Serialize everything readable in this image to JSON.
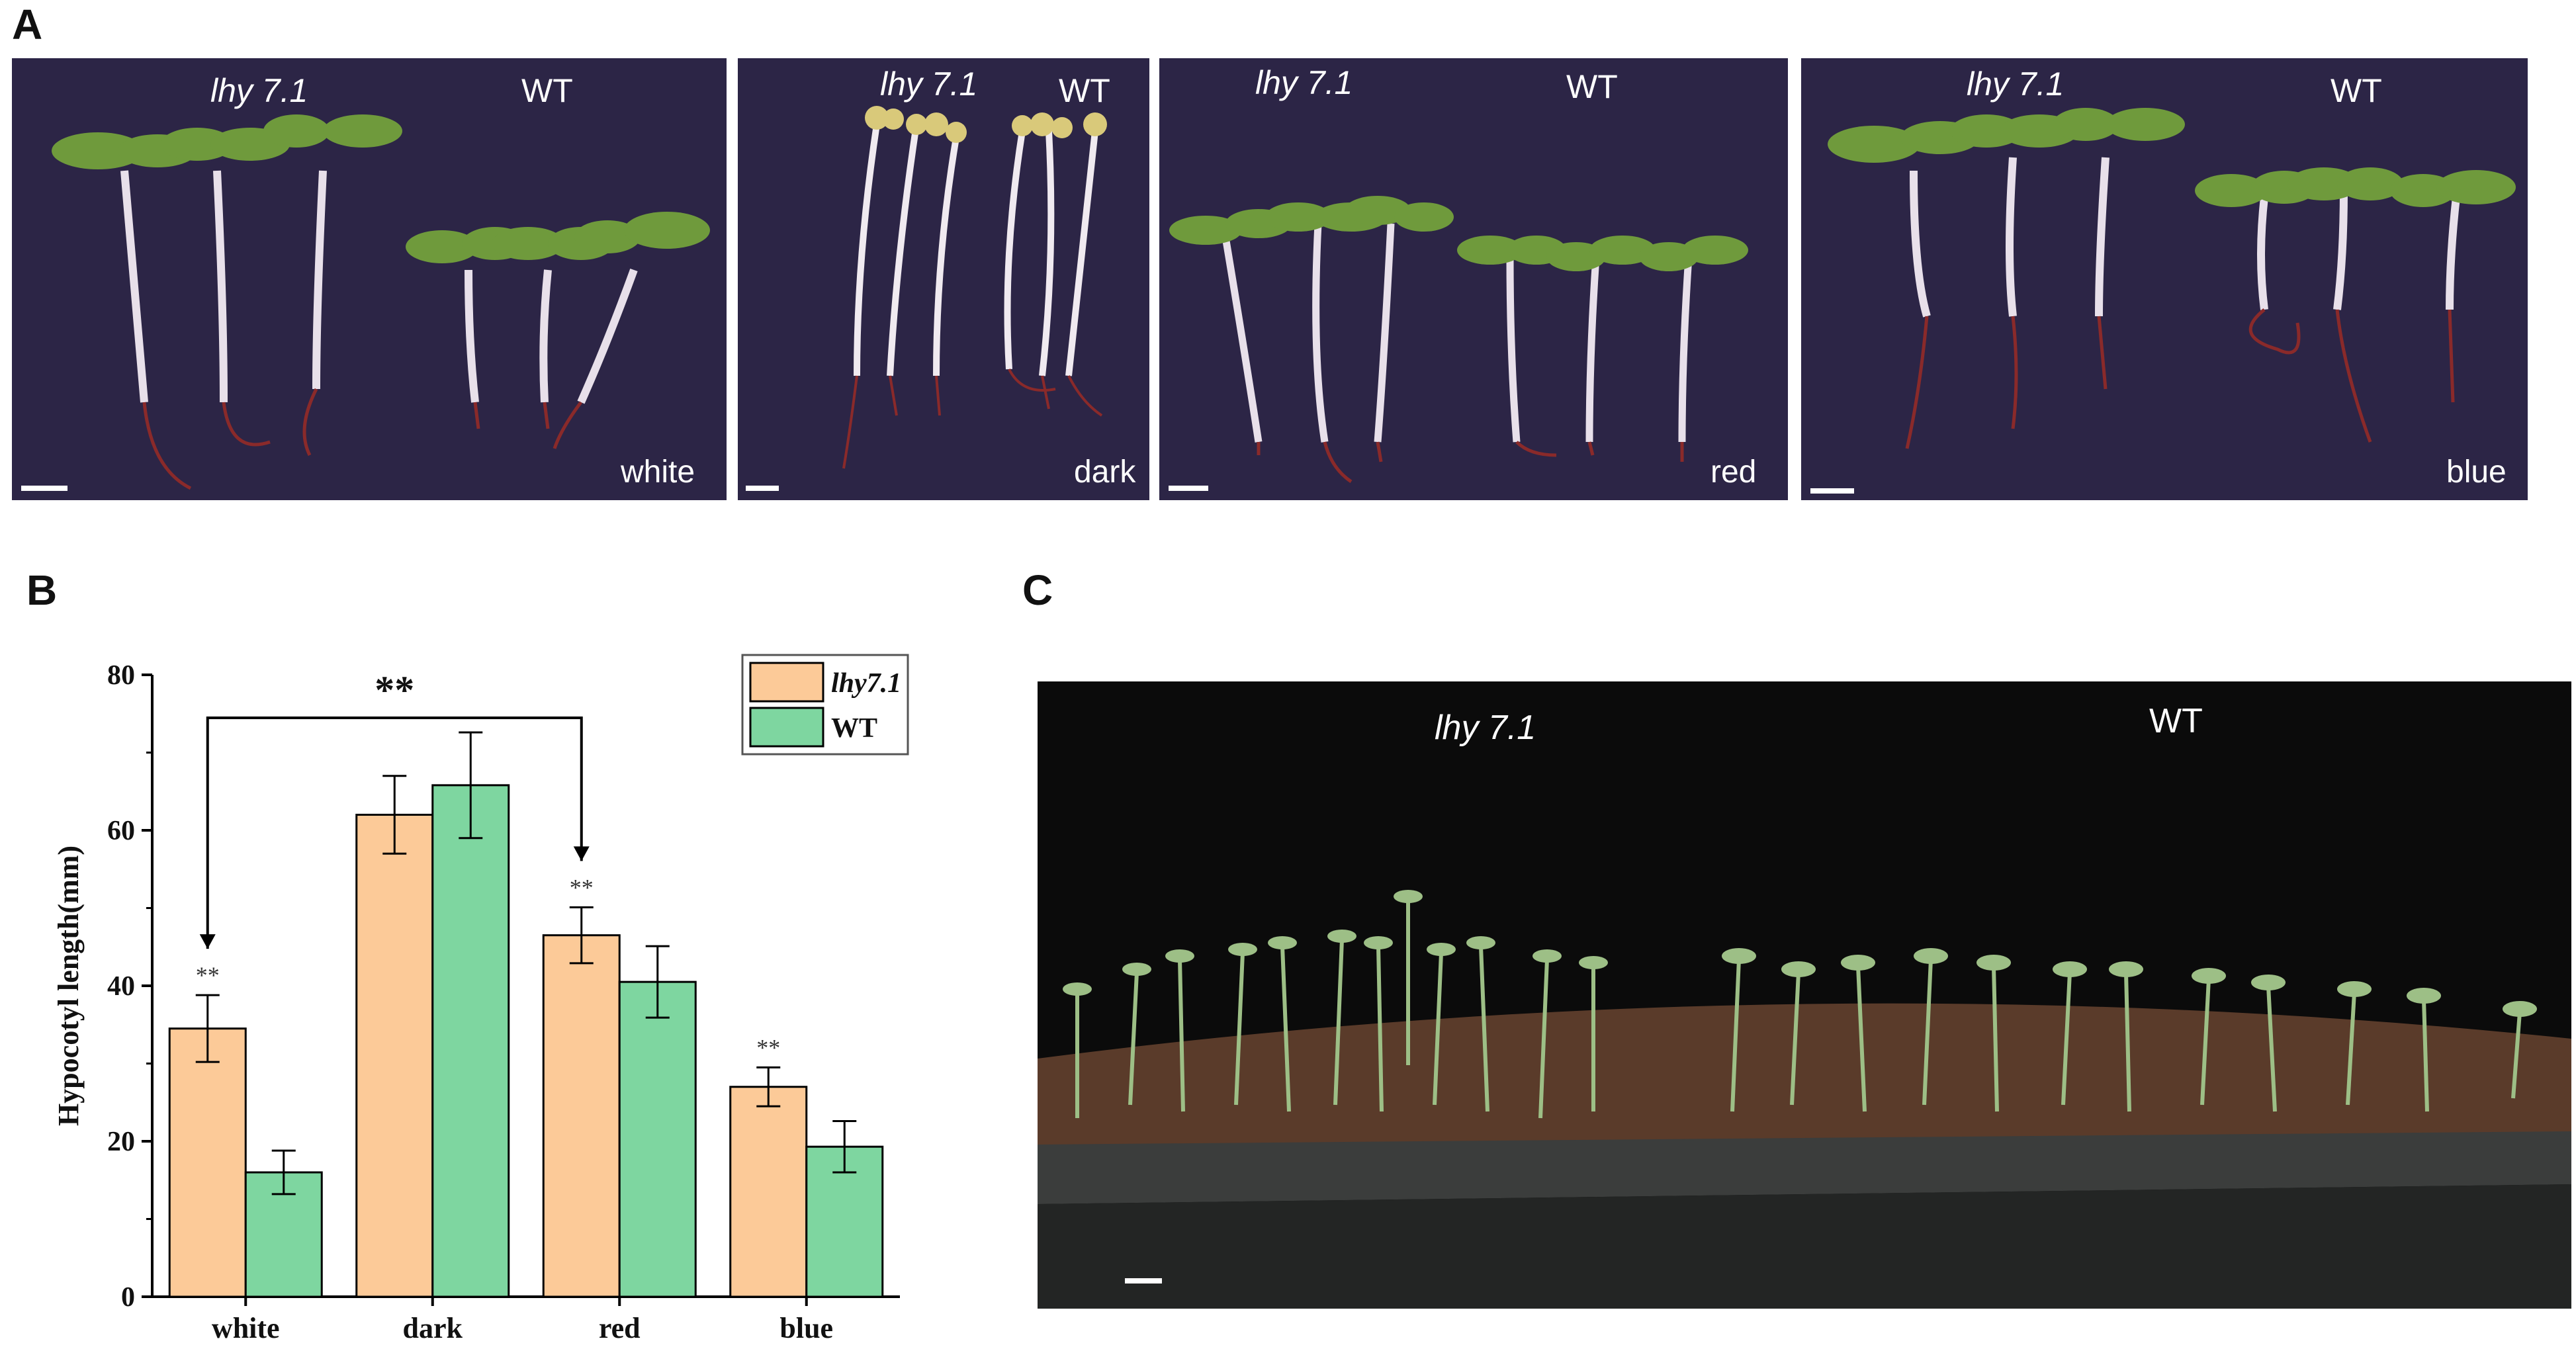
{
  "panels": {
    "a": {
      "letter": "A"
    },
    "b": {
      "letter": "B"
    },
    "c": {
      "letter": "C"
    }
  },
  "panel_a": {
    "photos": [
      {
        "mutant_label": "lhy 7.1",
        "wt_label": "WT",
        "condition": "white"
      },
      {
        "mutant_label": "lhy 7.1",
        "wt_label": "WT",
        "condition": "dark"
      },
      {
        "mutant_label": "lhy 7.1",
        "wt_label": "WT",
        "condition": "red"
      },
      {
        "mutant_label": "lhy 7.1",
        "wt_label": "WT",
        "condition": "blue"
      }
    ],
    "colors": {
      "background": "#2c2546",
      "stem": "#e8e0ea",
      "cotyledon": "#6f9a3c",
      "cotyledon_dark": "#d9c97a",
      "root": "#8a2a2a"
    }
  },
  "panel_c": {
    "mutant_label": "lhy 7.1",
    "wt_label": "WT",
    "colors": {
      "background": "#0b0b0b",
      "soil": "#5a3b2a",
      "tray": "#3b3d3c",
      "seedling": "#9dbf86"
    }
  },
  "chart_data": {
    "type": "bar",
    "categories": [
      "white",
      "dark",
      "red",
      "blue"
    ],
    "series": [
      {
        "name": "lhy7.1",
        "values": [
          34.5,
          62.0,
          46.5,
          27.0
        ],
        "errors": [
          4.3,
          5.0,
          3.6,
          2.5
        ],
        "color": "#fcca98"
      },
      {
        "name": "WT",
        "values": [
          16.0,
          65.8,
          40.5,
          19.3
        ],
        "errors": [
          2.8,
          6.8,
          4.6,
          3.3
        ],
        "color": "#7ed6a0"
      }
    ],
    "ylabel": "Hypocotyl length(mm)",
    "xlabel": "",
    "ylim": [
      0,
      80
    ],
    "yticks": [
      0,
      20,
      40,
      60,
      80
    ],
    "legend_position": "top-right",
    "significance_marks": [
      {
        "category": "white",
        "label": "**"
      },
      {
        "category": "red",
        "label": "**"
      },
      {
        "category": "blue",
        "label": "**"
      }
    ],
    "bracket": {
      "from": "white",
      "to": "red",
      "label": "**"
    }
  }
}
